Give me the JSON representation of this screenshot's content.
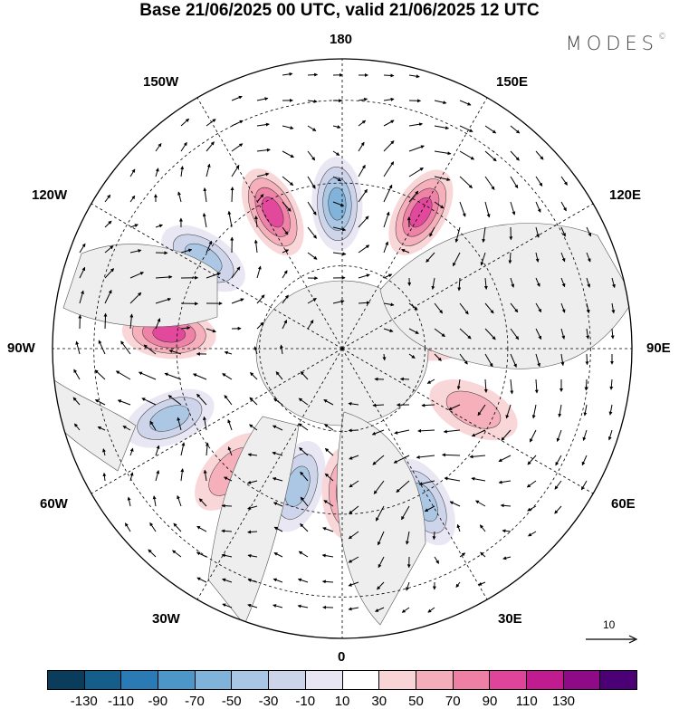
{
  "title": "Base 21/06/2025 00 UTC, valid 21/06/2025 12 UTC",
  "brand": "MODES",
  "brand_mark": "©",
  "longitude_labels": {
    "top": "180",
    "bottom": "0",
    "left": "90W",
    "right": "90E",
    "upper_left_1": "150W",
    "upper_left_2": "120W",
    "upper_right_1": "150E",
    "upper_right_2": "120E",
    "lower_left_1": "60W",
    "lower_left_2": "30W",
    "lower_right_1": "60E",
    "lower_right_2": "30E"
  },
  "reference_vector": {
    "label": "10"
  },
  "colorbar": {
    "colors": [
      "#0a3d5c",
      "#155e8c",
      "#2a7ab5",
      "#4c96c8",
      "#7fb3da",
      "#a9c6e4",
      "#ccd4ea",
      "#e8e6f2",
      "#ffffff",
      "#f9d4d6",
      "#f4aebb",
      "#ee7fa5",
      "#e0449a",
      "#c11c8f",
      "#8e0a86",
      "#4c0075"
    ],
    "tick_labels": [
      "-130",
      "-110",
      "-90",
      "-70",
      "-50",
      "-30",
      "-10",
      "10",
      "30",
      "50",
      "70",
      "90",
      "110",
      "130"
    ]
  },
  "anomaly_features": [
    {
      "sign": "neg",
      "strength": 0.75,
      "lon_deg": 182,
      "lat_deg": 55
    },
    {
      "sign": "pos",
      "strength": 0.85,
      "lon_deg": 150,
      "lat_deg": 52
    },
    {
      "sign": "pos",
      "strength": 0.7,
      "lon_deg": 207,
      "lat_deg": 53
    },
    {
      "sign": "neg",
      "strength": 0.6,
      "lon_deg": 237,
      "lat_deg": 50
    },
    {
      "sign": "pos",
      "strength": 0.75,
      "lon_deg": 265,
      "lat_deg": 48
    },
    {
      "sign": "neg",
      "strength": 0.5,
      "lon_deg": 292,
      "lat_deg": 45
    },
    {
      "sign": "neg",
      "strength": 0.55,
      "lon_deg": 342,
      "lat_deg": 55
    },
    {
      "sign": "pos",
      "strength": 0.6,
      "lon_deg": 2,
      "lat_deg": 55
    },
    {
      "sign": "neg",
      "strength": 0.65,
      "lon_deg": 28,
      "lat_deg": 48
    },
    {
      "sign": "pos",
      "strength": 0.35,
      "lon_deg": 65,
      "lat_deg": 55
    },
    {
      "sign": "neg",
      "strength": 0.45,
      "lon_deg": 118,
      "lat_deg": 60
    },
    {
      "sign": "pos",
      "strength": 0.45,
      "lon_deg": 98,
      "lat_deg": 66
    },
    {
      "sign": "pos",
      "strength": 0.35,
      "lon_deg": 318,
      "lat_deg": 50
    }
  ]
}
